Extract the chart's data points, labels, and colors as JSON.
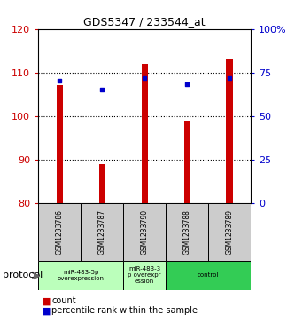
{
  "title": "GDS5347 / 233544_at",
  "samples": [
    "GSM1233786",
    "GSM1233787",
    "GSM1233790",
    "GSM1233788",
    "GSM1233789"
  ],
  "bar_values": [
    107,
    89,
    112,
    99,
    113
  ],
  "percentile_values": [
    70,
    65,
    72,
    68,
    72
  ],
  "ylim_left": [
    80,
    120
  ],
  "ylim_right": [
    0,
    100
  ],
  "yticks_left": [
    80,
    90,
    100,
    110,
    120
  ],
  "yticks_right": [
    0,
    25,
    50,
    75,
    100
  ],
  "bar_color": "#cc0000",
  "dot_color": "#0000cc",
  "bar_bottom": 80,
  "bar_width": 0.15,
  "groups": [
    {
      "label": "miR-483-5p\noverexpression",
      "start": 0,
      "end": 2,
      "color": "#bbffbb"
    },
    {
      "label": "miR-483-3\np overexpr\nession",
      "start": 2,
      "end": 3,
      "color": "#bbffbb"
    },
    {
      "label": "control",
      "start": 3,
      "end": 5,
      "color": "#33cc55"
    }
  ],
  "protocol_label": "protocol",
  "legend_count_label": "count",
  "legend_percentile_label": "percentile rank within the sample",
  "background_color": "#ffffff",
  "plot_bg_color": "#ffffff",
  "tick_color_left": "#cc0000",
  "tick_color_right": "#0000cc",
  "sample_box_color": "#cccccc"
}
